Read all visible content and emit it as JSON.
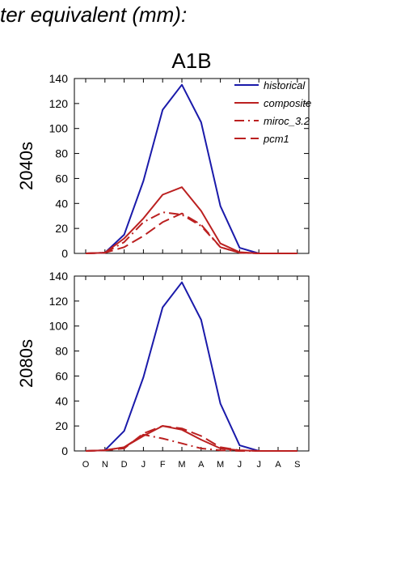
{
  "header": {
    "text": "ter equivalent (mm):"
  },
  "scenario": "A1B",
  "colors": {
    "historical": "#1a1aaa",
    "projection": "#bb2020",
    "axis": "#000000"
  },
  "chart_data": [
    {
      "type": "line",
      "row_label": "2040s",
      "x": [
        "O",
        "N",
        "D",
        "J",
        "F",
        "M",
        "A",
        "M",
        "J",
        "J",
        "A",
        "S"
      ],
      "ylim": [
        0,
        140
      ],
      "yticks": [
        0,
        20,
        40,
        60,
        80,
        100,
        120,
        140
      ],
      "legend": "top-right",
      "series": [
        {
          "name": "historical",
          "dash": "solid",
          "values": [
            0,
            0.5,
            15,
            58,
            115,
            135,
            105,
            38,
            4.5,
            0,
            0,
            0
          ]
        },
        {
          "name": "composite",
          "dash": "solid",
          "values": [
            0,
            0.5,
            12,
            28,
            47,
            53,
            34,
            8,
            1,
            0,
            0,
            0
          ]
        },
        {
          "name": "miroc_3.2",
          "dash": "dashdot",
          "values": [
            0,
            0.5,
            9,
            25,
            33,
            31,
            22,
            5,
            0.5,
            0,
            0,
            0
          ]
        },
        {
          "name": "pcm1",
          "dash": "dash",
          "values": [
            0,
            0.5,
            5,
            14,
            25,
            32,
            23,
            5,
            0.5,
            0,
            0,
            0
          ]
        }
      ],
      "show_legend": true
    },
    {
      "type": "line",
      "row_label": "2080s",
      "x": [
        "O",
        "N",
        "D",
        "J",
        "F",
        "M",
        "A",
        "M",
        "J",
        "J",
        "A",
        "S"
      ],
      "ylim": [
        0,
        140
      ],
      "yticks": [
        0,
        20,
        40,
        60,
        80,
        100,
        120,
        140
      ],
      "series": [
        {
          "name": "historical",
          "dash": "solid",
          "values": [
            0,
            0.5,
            16,
            59,
            115,
            135,
            105,
            38,
            4.5,
            0,
            0,
            0
          ]
        },
        {
          "name": "composite",
          "dash": "solid",
          "values": [
            0,
            0.5,
            3,
            12,
            20,
            17,
            9,
            2,
            0.5,
            0,
            0,
            0
          ]
        },
        {
          "name": "miroc_3.2",
          "dash": "dashdot",
          "values": [
            0,
            0.5,
            3,
            13,
            10,
            6,
            2,
            0.5,
            0,
            0,
            0,
            0
          ]
        },
        {
          "name": "pcm1",
          "dash": "dash",
          "values": [
            0,
            0.5,
            2,
            14,
            20,
            18,
            12,
            3,
            0.5,
            0,
            0,
            0
          ]
        }
      ],
      "show_legend": false,
      "show_xlabels": true
    }
  ]
}
